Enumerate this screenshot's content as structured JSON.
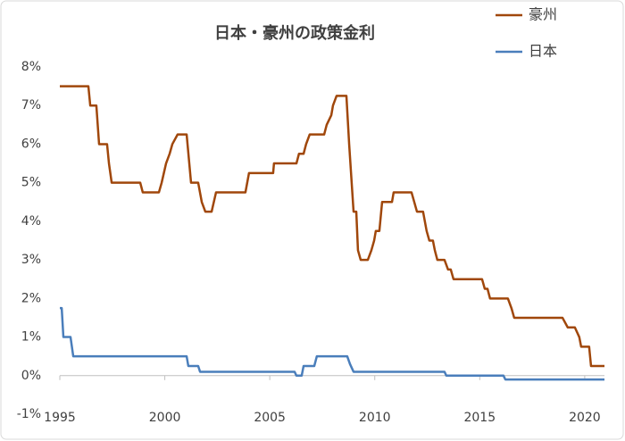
{
  "chart_data": {
    "type": "line",
    "title": "日本・豪州の政策金利",
    "xlim": [
      1995,
      2020.94
    ],
    "xticks": [
      1995,
      2000,
      2005,
      2010,
      2015,
      2020
    ],
    "ylim": [
      -1,
      8
    ],
    "yticks": [
      {
        "value": -1,
        "label": "-1%"
      },
      {
        "value": 0,
        "label": "0%"
      },
      {
        "value": 1,
        "label": "1%"
      },
      {
        "value": 2,
        "label": "2%"
      },
      {
        "value": 3,
        "label": "3%"
      },
      {
        "value": 4,
        "label": "4%"
      },
      {
        "value": 5,
        "label": "5%"
      },
      {
        "value": 6,
        "label": "6%"
      },
      {
        "value": 7,
        "label": "7%"
      },
      {
        "value": 8,
        "label": "8%"
      }
    ],
    "grid": false,
    "legend": "top-right",
    "series": [
      {
        "name": "豪州",
        "color": "#a0470b",
        "x": [
          1995.0,
          1996.36,
          1996.45,
          1996.74,
          1996.87,
          1997.25,
          1997.34,
          1997.47,
          1998.83,
          1998.95,
          1999.72,
          1999.85,
          2000.06,
          2000.23,
          2000.36,
          2000.61,
          2001.04,
          2001.25,
          2001.59,
          2001.76,
          2001.93,
          2002.23,
          2002.44,
          2003.84,
          2004.01,
          2005.16,
          2005.2,
          2006.27,
          2006.39,
          2006.61,
          2006.73,
          2006.9,
          2007.59,
          2007.71,
          2007.93,
          2008.01,
          2008.18,
          2008.65,
          2008.78,
          2008.99,
          2009.12,
          2009.2,
          2009.33,
          2009.67,
          2009.84,
          2009.97,
          2010.05,
          2010.22,
          2010.35,
          2010.82,
          2010.9,
          2011.75,
          2012.01,
          2012.3,
          2012.47,
          2012.6,
          2012.77,
          2012.86,
          2012.98,
          2013.32,
          2013.49,
          2013.62,
          2013.75,
          2015.11,
          2015.24,
          2015.37,
          2015.49,
          2016.34,
          2016.51,
          2016.64,
          2018.94,
          2019.19,
          2019.53,
          2019.74,
          2019.83,
          2020.21,
          2020.3,
          2020.94
        ],
        "values": [
          7.5,
          7.5,
          7.0,
          7.0,
          6.0,
          6.0,
          5.5,
          5.0,
          5.0,
          4.75,
          4.75,
          5.0,
          5.5,
          5.75,
          6.0,
          6.25,
          6.25,
          5.0,
          5.0,
          4.5,
          4.25,
          4.25,
          4.75,
          4.75,
          5.25,
          5.25,
          5.5,
          5.5,
          5.75,
          5.75,
          6.0,
          6.25,
          6.25,
          6.5,
          6.75,
          7.0,
          7.25,
          7.25,
          6.0,
          4.25,
          4.25,
          3.25,
          3.0,
          3.0,
          3.25,
          3.5,
          3.75,
          3.75,
          4.5,
          4.5,
          4.75,
          4.75,
          4.25,
          4.25,
          3.75,
          3.5,
          3.5,
          3.25,
          3.0,
          3.0,
          2.75,
          2.75,
          2.5,
          2.5,
          2.25,
          2.25,
          2.0,
          2.0,
          1.75,
          1.5,
          1.5,
          1.25,
          1.25,
          1.0,
          0.75,
          0.75,
          0.25,
          0.25
        ]
      },
      {
        "name": "日本",
        "color": "#4a7ebb",
        "x": [
          1995.0,
          1995.09,
          1995.17,
          1995.51,
          1995.64,
          2001.04,
          2001.12,
          2001.59,
          2001.68,
          2006.18,
          2006.27,
          2006.52,
          2006.61,
          2007.12,
          2007.24,
          2008.69,
          2008.82,
          2008.99,
          2013.32,
          2013.41,
          2016.13,
          2016.22,
          2020.94
        ],
        "values": [
          1.75,
          1.75,
          1.0,
          1.0,
          0.5,
          0.5,
          0.25,
          0.25,
          0.1,
          0.1,
          0.0,
          0.0,
          0.25,
          0.25,
          0.5,
          0.5,
          0.3,
          0.1,
          0.1,
          0.0,
          0.0,
          -0.1,
          -0.1
        ]
      }
    ]
  }
}
